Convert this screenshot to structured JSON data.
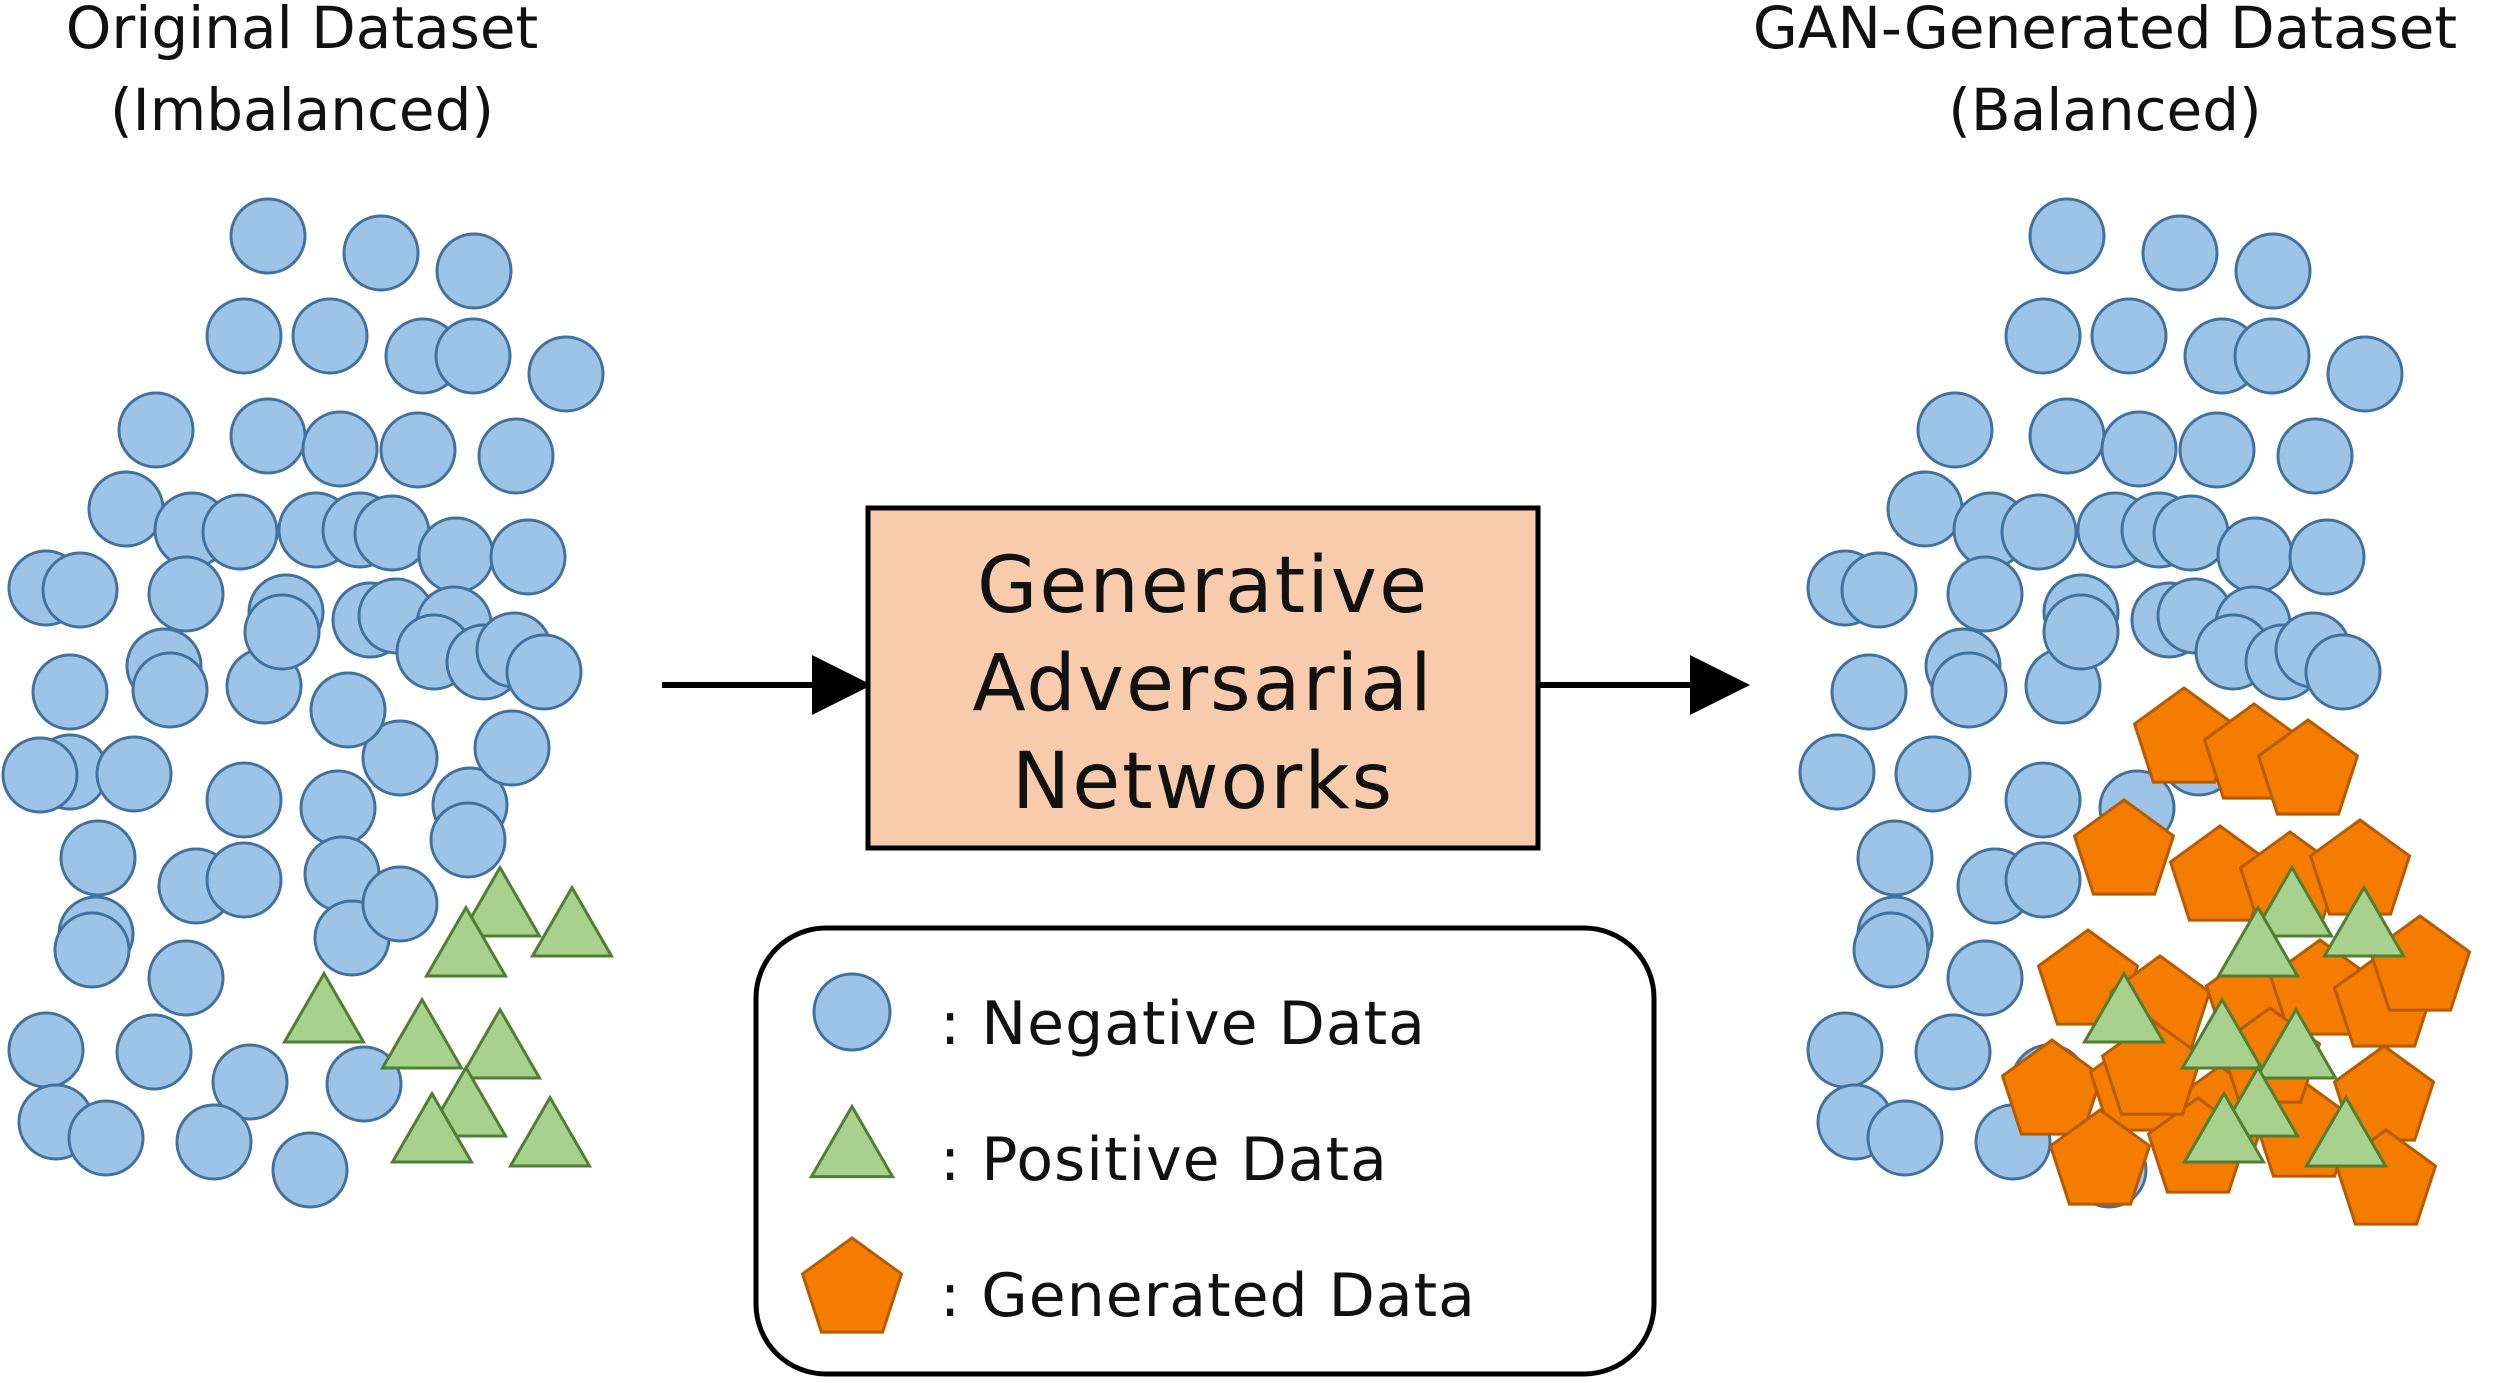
{
  "left_title": {
    "line1": "Original Dataset",
    "line2": "(Imbalanced)"
  },
  "right_title": {
    "line1": "GAN-Generated Dataset",
    "line2": "(Balanced)"
  },
  "model_box": {
    "line1": "Generative",
    "line2": "Adversarial",
    "line3": "Networks"
  },
  "legend": {
    "negative_label": ": Negative Data",
    "positive_label": ": Positive Data",
    "generated_label": ": Generated Data"
  },
  "colors": {
    "negative_fill": "#9dc3e6",
    "negative_stroke": "#41719c",
    "positive_fill": "#a9d18e",
    "positive_stroke": "#507e32",
    "generated_fill": "#f47c00",
    "generated_stroke": "#b85a00",
    "box_fill": "#f8cbad",
    "box_stroke": "#000000"
  },
  "icons": {
    "negative": "circle-icon",
    "positive": "triangle-icon",
    "generated": "pentagon-icon",
    "arrow": "arrow-right-icon"
  }
}
